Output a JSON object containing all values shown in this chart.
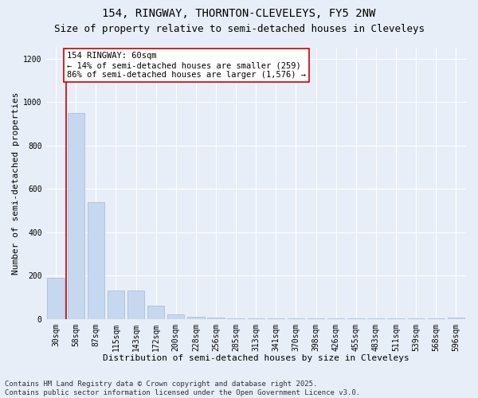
{
  "title1": "154, RINGWAY, THORNTON-CLEVELEYS, FY5 2NW",
  "title2": "Size of property relative to semi-detached houses in Cleveleys",
  "xlabel": "Distribution of semi-detached houses by size in Cleveleys",
  "ylabel": "Number of semi-detached properties",
  "categories": [
    "30sqm",
    "58sqm",
    "87sqm",
    "115sqm",
    "143sqm",
    "172sqm",
    "200sqm",
    "228sqm",
    "256sqm",
    "285sqm",
    "313sqm",
    "341sqm",
    "370sqm",
    "398sqm",
    "426sqm",
    "455sqm",
    "483sqm",
    "511sqm",
    "539sqm",
    "568sqm",
    "596sqm"
  ],
  "values": [
    190,
    950,
    540,
    130,
    130,
    60,
    20,
    10,
    5,
    3,
    2,
    2,
    1,
    1,
    1,
    1,
    1,
    1,
    1,
    1,
    5
  ],
  "bar_color": "#c5d8f0",
  "bar_edge_color": "#a0b8d8",
  "vline_color": "#cc0000",
  "vline_bar_index": 1,
  "annotation_text": "154 RINGWAY: 60sqm\n← 14% of semi-detached houses are smaller (259)\n86% of semi-detached houses are larger (1,576) →",
  "annotation_box_color": "#ffffff",
  "annotation_edge_color": "#cc0000",
  "ylim": [
    0,
    1250
  ],
  "yticks": [
    0,
    200,
    400,
    600,
    800,
    1000,
    1200
  ],
  "background_color": "#e8eef7",
  "plot_bg_color": "#e8eef7",
  "footer_text": "Contains HM Land Registry data © Crown copyright and database right 2025.\nContains public sector information licensed under the Open Government Licence v3.0.",
  "title1_fontsize": 10,
  "title2_fontsize": 9,
  "xlabel_fontsize": 8,
  "ylabel_fontsize": 8,
  "tick_fontsize": 7,
  "annotation_fontsize": 7.5,
  "footer_fontsize": 6.5
}
